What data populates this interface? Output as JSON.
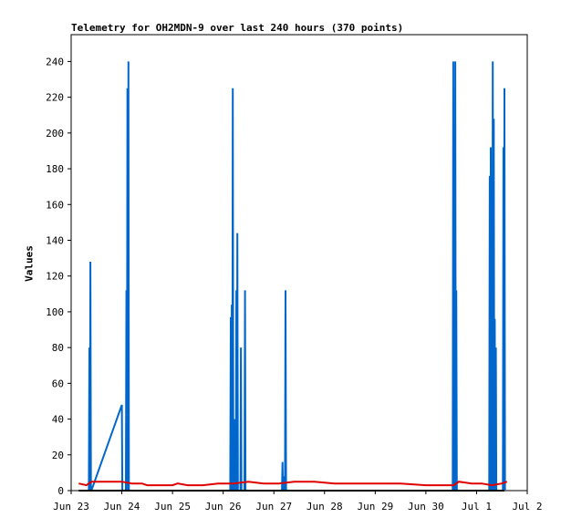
{
  "chart_data": {
    "type": "line",
    "title": "Telemetry for OH2MDN-9 over last 240 hours (370 points)",
    "xlabel": "",
    "ylabel": "Values",
    "x_tick_labels": [
      "Jun 23",
      "Jun 24",
      "Jun 25",
      "Jun 26",
      "Jun 27",
      "Jun 28",
      "Jun 29",
      "Jun 30",
      "Jul 1",
      "Jul 2"
    ],
    "y_ticks": [
      0,
      20,
      40,
      60,
      80,
      100,
      120,
      140,
      160,
      180,
      200,
      220,
      240
    ],
    "xlim_days": [
      0,
      9
    ],
    "ylim": [
      0,
      255
    ],
    "grid": false,
    "legend": "none",
    "series": [
      {
        "color": "#0066cc",
        "points": [
          [
            0.35,
            0
          ],
          [
            0.36,
            80
          ],
          [
            0.37,
            0
          ],
          [
            0.38,
            128
          ],
          [
            0.39,
            0
          ],
          [
            0.4,
            0
          ],
          [
            1.0,
            48
          ],
          [
            1.01,
            0
          ],
          [
            1.08,
            0
          ],
          [
            1.09,
            112
          ],
          [
            1.1,
            0
          ],
          [
            1.11,
            225
          ],
          [
            1.12,
            0
          ],
          [
            1.13,
            240
          ],
          [
            1.14,
            0
          ],
          [
            3.14,
            0
          ],
          [
            3.15,
            97
          ],
          [
            3.16,
            0
          ],
          [
            3.17,
            104
          ],
          [
            3.18,
            0
          ],
          [
            3.19,
            225
          ],
          [
            3.2,
            0
          ],
          [
            3.22,
            0
          ],
          [
            3.23,
            40
          ],
          [
            3.24,
            0
          ],
          [
            3.25,
            0
          ],
          [
            3.26,
            112
          ],
          [
            3.27,
            0
          ],
          [
            3.28,
            144
          ],
          [
            3.29,
            0
          ],
          [
            3.34,
            0
          ],
          [
            3.35,
            80
          ],
          [
            3.36,
            0
          ],
          [
            3.42,
            0
          ],
          [
            3.43,
            112
          ],
          [
            3.44,
            0
          ],
          [
            4.16,
            0
          ],
          [
            4.17,
            16
          ],
          [
            4.18,
            0
          ],
          [
            4.2,
            0
          ],
          [
            4.21,
            8
          ],
          [
            4.22,
            0
          ],
          [
            4.23,
            112
          ],
          [
            4.24,
            0
          ],
          [
            7.53,
            0
          ],
          [
            7.54,
            240
          ],
          [
            7.55,
            0
          ],
          [
            7.57,
            0
          ],
          [
            7.58,
            240
          ],
          [
            7.59,
            0
          ],
          [
            7.6,
            112
          ],
          [
            7.61,
            0
          ],
          [
            8.25,
            0
          ],
          [
            8.26,
            176
          ],
          [
            8.27,
            0
          ],
          [
            8.28,
            192
          ],
          [
            8.29,
            0
          ],
          [
            8.3,
            80
          ],
          [
            8.31,
            0
          ],
          [
            8.32,
            240
          ],
          [
            8.33,
            0
          ],
          [
            8.34,
            208
          ],
          [
            8.35,
            0
          ],
          [
            8.36,
            96
          ],
          [
            8.37,
            0
          ],
          [
            8.38,
            80
          ],
          [
            8.39,
            0
          ],
          [
            8.52,
            0
          ],
          [
            8.53,
            192
          ],
          [
            8.54,
            0
          ],
          [
            8.55,
            225
          ],
          [
            8.56,
            0
          ]
        ]
      },
      {
        "color": "#e00000",
        "points": [
          [
            0.15,
            4
          ],
          [
            0.3,
            3
          ],
          [
            0.4,
            5
          ],
          [
            0.7,
            5
          ],
          [
            1.0,
            5
          ],
          [
            1.2,
            4
          ],
          [
            1.4,
            4
          ],
          [
            1.5,
            3
          ],
          [
            1.8,
            3
          ],
          [
            2.0,
            3
          ],
          [
            2.1,
            4
          ],
          [
            2.3,
            3
          ],
          [
            2.6,
            3
          ],
          [
            2.9,
            4
          ],
          [
            3.2,
            4
          ],
          [
            3.5,
            5
          ],
          [
            3.8,
            4
          ],
          [
            4.1,
            4
          ],
          [
            4.4,
            5
          ],
          [
            4.8,
            5
          ],
          [
            5.2,
            4
          ],
          [
            5.6,
            4
          ],
          [
            6.0,
            4
          ],
          [
            6.5,
            4
          ],
          [
            7.0,
            3
          ],
          [
            7.3,
            3
          ],
          [
            7.55,
            3
          ],
          [
            7.65,
            5
          ],
          [
            7.9,
            4
          ],
          [
            8.1,
            4
          ],
          [
            8.3,
            3
          ],
          [
            8.5,
            4
          ],
          [
            8.6,
            5
          ]
        ]
      },
      {
        "color": "#000000",
        "points": [
          [
            0.15,
            0
          ],
          [
            8.55,
            0
          ]
        ]
      }
    ]
  }
}
